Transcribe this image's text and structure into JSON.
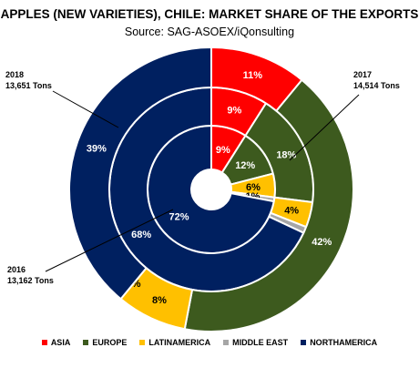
{
  "chart_data": {
    "type": "pie",
    "subtype": "multi-ring donut",
    "title": "APPLES (NEW VARIETIES), CHILE: MARKET SHARE OF THE EXPORTS",
    "subtitle": "Source: SAG-ASOEX/iQonsulting",
    "categories": [
      "ASIA",
      "EUROPE",
      "LATINAMERICA",
      "MIDDLE EAST",
      "NORTHAMERICA"
    ],
    "colors": [
      "#ff0000",
      "#3d5a1e",
      "#ffc000",
      "#a6a6a6",
      "#002060"
    ],
    "series": [
      {
        "name": "2016",
        "total_label": "13,162 Tons",
        "ring": "inner",
        "values": [
          9,
          12,
          6,
          1,
          72
        ],
        "labels": [
          "9%",
          "12%",
          "6%",
          "1%",
          "72%"
        ]
      },
      {
        "name": "2017",
        "total_label": "14,514 Tons",
        "ring": "middle",
        "values": [
          9,
          18,
          4,
          1,
          68
        ],
        "labels": [
          "9%",
          "18%",
          "4%",
          "",
          "68%"
        ]
      },
      {
        "name": "2018",
        "total_label": "13,651 Tons",
        "ring": "outer",
        "values": [
          11,
          42,
          8,
          0,
          39
        ],
        "labels": [
          "11%",
          "42%",
          "8%",
          "0%",
          "39%"
        ]
      }
    ],
    "legend_position": "bottom"
  }
}
